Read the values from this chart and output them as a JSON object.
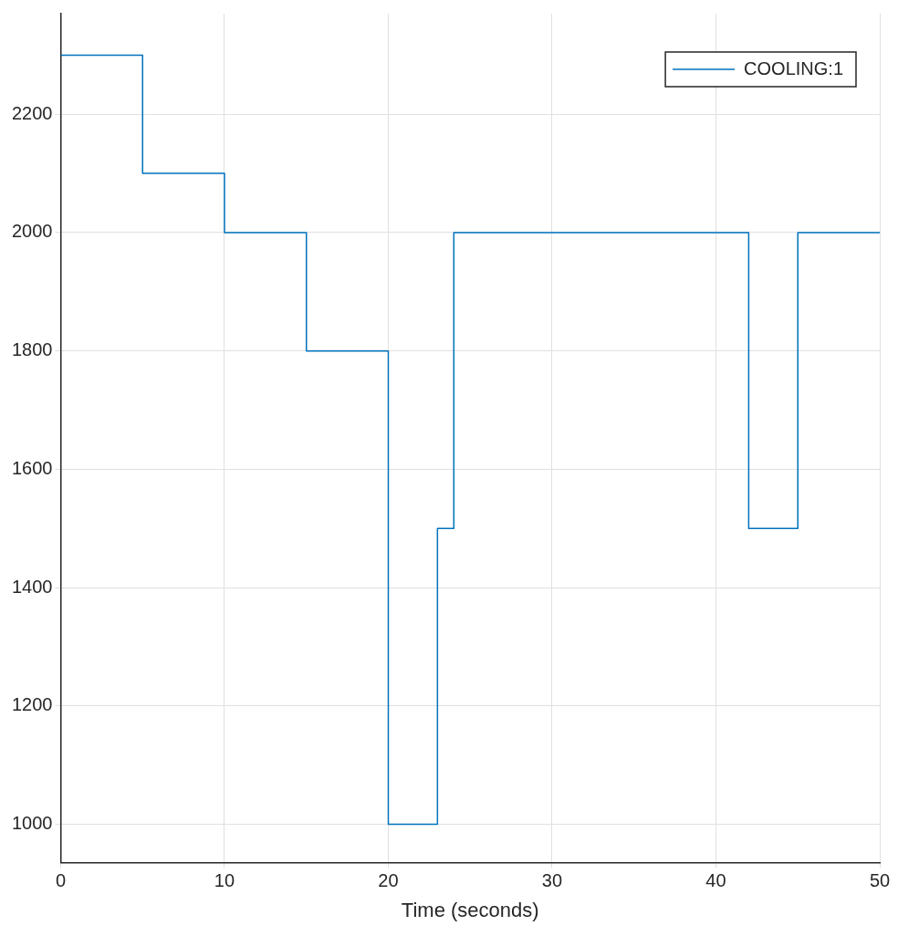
{
  "chart_data": {
    "type": "step",
    "xlabel": "Time (seconds)",
    "x": [
      0,
      5,
      10,
      15,
      20,
      23,
      24,
      42,
      45,
      50
    ],
    "series": [
      {
        "name": "COOLING:1",
        "color": "#0072bd",
        "values": [
          2300,
          2100,
          2000,
          1800,
          1000,
          1500,
          2000,
          1500,
          2000,
          2000
        ]
      }
    ],
    "xlim": [
      0,
      50
    ],
    "xticks": [
      0,
      10,
      20,
      30,
      40,
      50
    ],
    "ylim": [
      935,
      2370
    ],
    "yticks": [
      1000,
      1200,
      1400,
      1600,
      1800,
      2000,
      2200
    ],
    "grid": true,
    "legend": "top right"
  }
}
